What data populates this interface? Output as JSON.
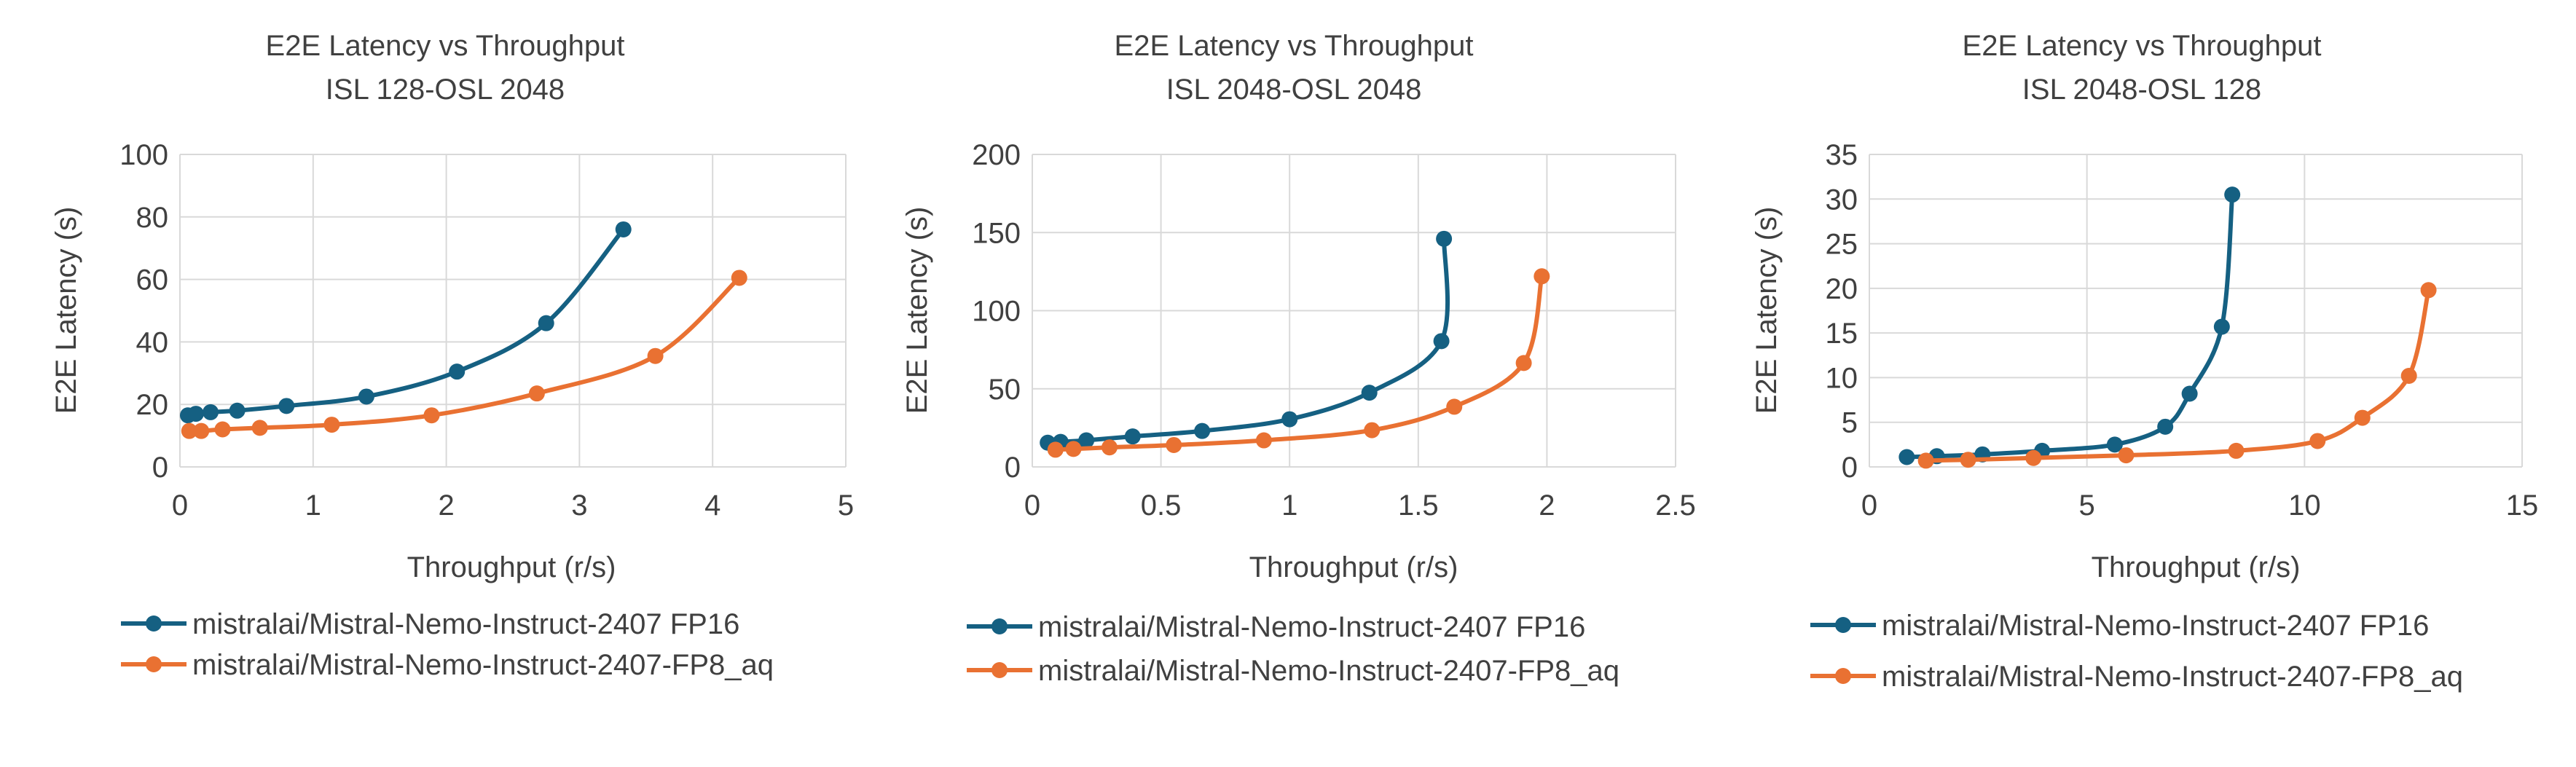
{
  "colors": {
    "fp16": "#156082",
    "fp8": "#E97132",
    "grid": "#D9D9D9",
    "text": "#404040"
  },
  "chart_data": [
    {
      "type": "line",
      "title": [
        "E2E Latency vs Throughput",
        "ISL 128-OSL 2048"
      ],
      "xlabel": "Throughput (r/s)",
      "ylabel": "E2E Latency (s)",
      "xlim": [
        0,
        5
      ],
      "xticks": [
        "0",
        "1",
        "2",
        "3",
        "4",
        "5"
      ],
      "ylim": [
        0,
        100
      ],
      "yticks": [
        "0",
        "20",
        "40",
        "60",
        "80",
        "100"
      ],
      "grid": true,
      "legend": "bottom",
      "series": [
        {
          "name": "mistralai/Mistral-Nemo-Instruct-2407 FP16",
          "color_key": "fp16",
          "x": [
            0.06,
            0.12,
            0.23,
            0.43,
            0.8,
            1.4,
            2.08,
            2.75,
            3.33
          ],
          "y": [
            16.5,
            17,
            17.5,
            18,
            19.5,
            22.5,
            30.5,
            46,
            76
          ]
        },
        {
          "name": "mistralai/Mistral-Nemo-Instruct-2407-FP8_aq",
          "color_key": "fp8",
          "x": [
            0.07,
            0.16,
            0.32,
            0.6,
            1.14,
            1.89,
            2.68,
            3.57,
            4.2
          ],
          "y": [
            11.5,
            11.5,
            12,
            12.5,
            13.5,
            16.5,
            23.5,
            35.5,
            60.5
          ]
        }
      ]
    },
    {
      "type": "line",
      "title": [
        "E2E Latency vs Throughput",
        "ISL 2048-OSL 2048"
      ],
      "xlabel": "Throughput (r/s)",
      "ylabel": "E2E Latency (s)",
      "xlim": [
        0,
        2.5
      ],
      "xticks": [
        "0",
        "0.5",
        "1",
        "1.5",
        "2",
        "2.5"
      ],
      "ylim": [
        0,
        200
      ],
      "yticks": [
        "0",
        "50",
        "100",
        "150",
        "200"
      ],
      "grid": true,
      "legend": "bottom",
      "series": [
        {
          "name": "mistralai/Mistral-Nemo-Instruct-2407 FP16",
          "color_key": "fp16",
          "x": [
            0.06,
            0.11,
            0.21,
            0.39,
            0.66,
            1.0,
            1.31,
            1.59,
            1.6
          ],
          "y": [
            15.5,
            16,
            17,
            19.5,
            23,
            30.5,
            47.5,
            80.5,
            146
          ]
        },
        {
          "name": "mistralai/Mistral-Nemo-Instruct-2407-FP8_aq",
          "color_key": "fp8",
          "x": [
            0.09,
            0.16,
            0.3,
            0.55,
            0.9,
            1.32,
            1.64,
            1.91,
            1.98
          ],
          "y": [
            11,
            11.5,
            12.5,
            14,
            17,
            23.5,
            38.5,
            66.5,
            122
          ]
        }
      ]
    },
    {
      "type": "line",
      "title": [
        "E2E Latency vs Throughput",
        "ISL 2048-OSL 128"
      ],
      "xlabel": "Throughput (r/s)",
      "ylabel": "E2E Latency (s)",
      "xlim": [
        0,
        15
      ],
      "xticks": [
        "0",
        "5",
        "10",
        "15"
      ],
      "ylim": [
        0,
        35
      ],
      "yticks": [
        "0",
        "5",
        "10",
        "15",
        "20",
        "25",
        "30",
        "35"
      ],
      "grid": true,
      "legend": "bottom",
      "series": [
        {
          "name": "mistralai/Mistral-Nemo-Instruct-2407 FP16",
          "color_key": "fp16",
          "x": [
            0.86,
            1.55,
            2.6,
            3.97,
            5.64,
            6.8,
            7.36,
            8.1,
            8.34
          ],
          "y": [
            1.1,
            1.2,
            1.4,
            1.8,
            2.5,
            4.5,
            8.2,
            15.7,
            30.5
          ]
        },
        {
          "name": "mistralai/Mistral-Nemo-Instruct-2407-FP8_aq",
          "color_key": "fp8",
          "x": [
            1.3,
            2.27,
            3.77,
            5.9,
            8.43,
            10.3,
            11.33,
            12.4,
            12.85
          ],
          "y": [
            0.7,
            0.8,
            1.0,
            1.3,
            1.8,
            2.9,
            5.5,
            10.2,
            19.8
          ]
        }
      ]
    }
  ]
}
